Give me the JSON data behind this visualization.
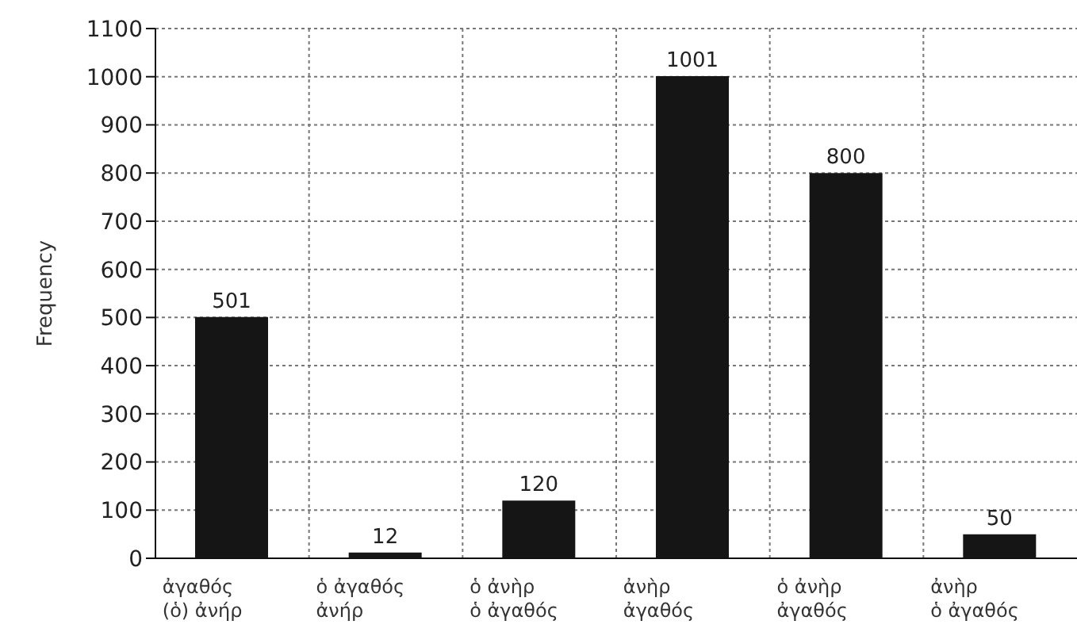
{
  "chart_data": {
    "type": "bar",
    "ylabel": "Frequency",
    "categories": [
      "ἀγαθός\n(ὁ) ἀνήρ",
      "ὁ ἀγαθός\nἀνήρ",
      "ὁ ἀνὴρ\nὁ ἀγαθός",
      "ἀνὴρ\nἀγαθός",
      "ὁ ἀνὴρ\nἀγαθός",
      "ἀνὴρ\nὁ ἀγαθός"
    ],
    "values": [
      501,
      12,
      120,
      1001,
      800,
      50
    ],
    "color": "#151515",
    "ylim": [
      0,
      1100
    ],
    "yticks": [
      0,
      100,
      200,
      300,
      400,
      500,
      600,
      700,
      800,
      900,
      1000,
      1100
    ],
    "grid": true,
    "data_labels": true
  }
}
